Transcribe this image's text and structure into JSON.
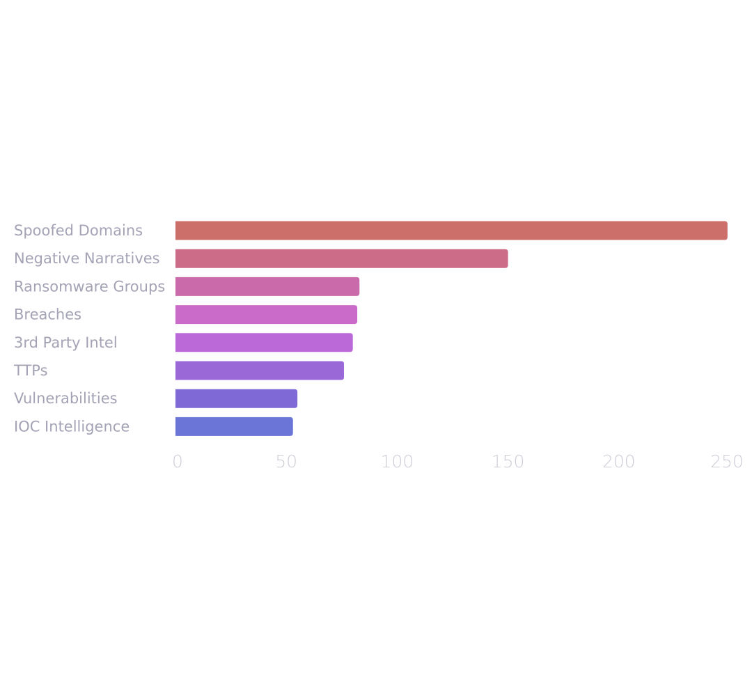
{
  "chart_data": {
    "type": "bar",
    "orientation": "horizontal",
    "categories": [
      "Spoofed Domains",
      "Negative Narratives",
      "Ransomware Groups",
      "Breaches",
      "3rd Party Intel",
      "TTPs",
      "Vulnerabilities",
      "IOC Intelligence"
    ],
    "values": [
      249,
      150,
      83,
      82,
      80,
      76,
      55,
      53
    ],
    "colors": [
      "#cc6f6a",
      "#cc6c89",
      "#cb6aab",
      "#cb6bc9",
      "#bb69d9",
      "#9b69d7",
      "#7e69d6",
      "#6b75d8"
    ],
    "xlim": [
      0,
      250
    ],
    "xticks": [
      "0",
      "50",
      "100",
      "150",
      "200",
      "250"
    ],
    "title": "",
    "xlabel": "",
    "ylabel": "",
    "grid": false,
    "legend": "none"
  }
}
